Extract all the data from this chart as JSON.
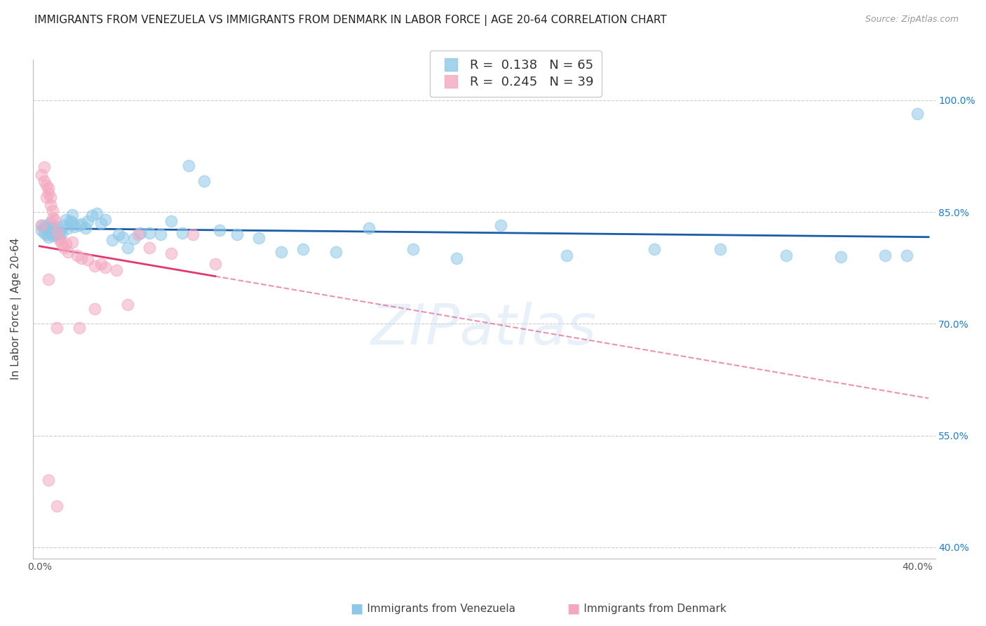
{
  "title": "IMMIGRANTS FROM VENEZUELA VS IMMIGRANTS FROM DENMARK IN LABOR FORCE | AGE 20-64 CORRELATION CHART",
  "source": "Source: ZipAtlas.com",
  "ylabel": "In Labor Force | Age 20-64",
  "xlim": [
    -0.003,
    0.408
  ],
  "ylim": [
    0.385,
    1.055
  ],
  "xticks": [
    0.0,
    0.08,
    0.16,
    0.24,
    0.32,
    0.4
  ],
  "xticklabels": [
    "0.0%",
    "",
    "",
    "",
    "",
    "40.0%"
  ],
  "yticks_right": [
    0.4,
    0.55,
    0.7,
    0.85,
    1.0
  ],
  "yticklabels_right": [
    "40.0%",
    "55.0%",
    "70.0%",
    "85.0%",
    "100.0%"
  ],
  "venezuela_R": 0.138,
  "venezuela_N": 65,
  "denmark_R": 0.245,
  "denmark_N": 39,
  "venezuela_color": "#8ec8e8",
  "denmark_color": "#f4a8c0",
  "venezuela_line_color": "#1a5ca8",
  "denmark_line_color": "#e03870",
  "grid_color": "#cccccc",
  "background_color": "#ffffff",
  "watermark": "ZIPatlas",
  "title_fontsize": 11,
  "tick_fontsize": 10,
  "legend_fontsize": 12,
  "ylabel_fontsize": 11,
  "venezuela_x": [
    0.001,
    0.001,
    0.002,
    0.002,
    0.003,
    0.003,
    0.004,
    0.004,
    0.005,
    0.005,
    0.005,
    0.006,
    0.006,
    0.007,
    0.007,
    0.008,
    0.008,
    0.009,
    0.009,
    0.01,
    0.011,
    0.012,
    0.013,
    0.014,
    0.015,
    0.015,
    0.016,
    0.018,
    0.019,
    0.021,
    0.022,
    0.024,
    0.026,
    0.028,
    0.03,
    0.033,
    0.036,
    0.038,
    0.04,
    0.043,
    0.046,
    0.05,
    0.055,
    0.06,
    0.065,
    0.068,
    0.075,
    0.082,
    0.09,
    0.1,
    0.11,
    0.12,
    0.135,
    0.15,
    0.17,
    0.19,
    0.21,
    0.24,
    0.28,
    0.31,
    0.34,
    0.365,
    0.385,
    0.395,
    0.4
  ],
  "venezuela_y": [
    0.826,
    0.832,
    0.822,
    0.83,
    0.82,
    0.832,
    0.816,
    0.826,
    0.822,
    0.83,
    0.836,
    0.818,
    0.826,
    0.82,
    0.828,
    0.82,
    0.83,
    0.816,
    0.824,
    0.822,
    0.832,
    0.84,
    0.828,
    0.838,
    0.836,
    0.846,
    0.83,
    0.832,
    0.834,
    0.828,
    0.838,
    0.845,
    0.848,
    0.835,
    0.84,
    0.812,
    0.82,
    0.816,
    0.802,
    0.814,
    0.822,
    0.822,
    0.82,
    0.838,
    0.822,
    0.912,
    0.892,
    0.826,
    0.82,
    0.815,
    0.796,
    0.8,
    0.796,
    0.828,
    0.8,
    0.788,
    0.832,
    0.792,
    0.8,
    0.8,
    0.792,
    0.79,
    0.792,
    0.792,
    0.982
  ],
  "denmark_x": [
    0.001,
    0.001,
    0.002,
    0.002,
    0.003,
    0.003,
    0.004,
    0.004,
    0.005,
    0.005,
    0.006,
    0.006,
    0.007,
    0.008,
    0.009,
    0.01,
    0.011,
    0.012,
    0.013,
    0.015,
    0.017,
    0.019,
    0.022,
    0.025,
    0.028,
    0.03,
    0.035,
    0.04,
    0.045,
    0.05,
    0.06,
    0.07,
    0.08,
    0.004,
    0.008,
    0.018,
    0.025,
    0.004,
    0.008
  ],
  "denmark_y": [
    0.832,
    0.9,
    0.892,
    0.91,
    0.886,
    0.87,
    0.876,
    0.882,
    0.87,
    0.86,
    0.852,
    0.842,
    0.84,
    0.824,
    0.812,
    0.808,
    0.802,
    0.808,
    0.796,
    0.81,
    0.792,
    0.788,
    0.786,
    0.778,
    0.78,
    0.776,
    0.772,
    0.726,
    0.82,
    0.802,
    0.795,
    0.82,
    0.78,
    0.76,
    0.695,
    0.695,
    0.72,
    0.49,
    0.455
  ],
  "legend_R_color_blue": "#1a7fd4",
  "legend_R_color_pink": "#e03870",
  "legend_N_color": "#1a7fd4"
}
